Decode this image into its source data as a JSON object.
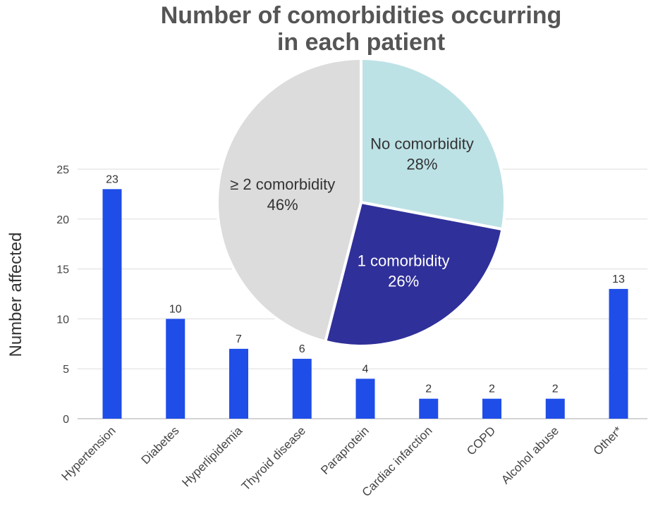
{
  "chart_data": [
    {
      "type": "bar",
      "ylabel": "Number affected",
      "ylim": [
        0,
        25
      ],
      "yticks": [
        0,
        5,
        10,
        15,
        20,
        25
      ],
      "grid": true,
      "color": "#1f4de8",
      "categories": [
        "Hypertension",
        "Diabetes",
        "Hyperlipidemia",
        "Thyroid disease",
        "Paraprotein",
        "Cardiac infarction",
        "COPD",
        "Alcohol abuse",
        "Other*"
      ],
      "values": [
        23,
        10,
        7,
        6,
        4,
        2,
        2,
        2,
        13
      ],
      "value_labels": [
        "23",
        "10",
        "7",
        "6",
        "4",
        "2",
        "2",
        "2",
        "13"
      ]
    },
    {
      "type": "pie",
      "title_lines": [
        "Number of comorbidities occurring",
        "in each patient"
      ],
      "slices": [
        {
          "label": "No comorbidity",
          "pct_label": "28%",
          "value": 28,
          "color": "#bde2e6",
          "text_color": "#333333"
        },
        {
          "label": "1 comorbidity",
          "pct_label": "26%",
          "value": 26,
          "color": "#30309a",
          "text_color": "#ffffff"
        },
        {
          "label": "≥ 2 comorbidity",
          "pct_label": "46%",
          "value": 46,
          "color": "#dcdcdc",
          "text_color": "#333333"
        }
      ]
    }
  ]
}
